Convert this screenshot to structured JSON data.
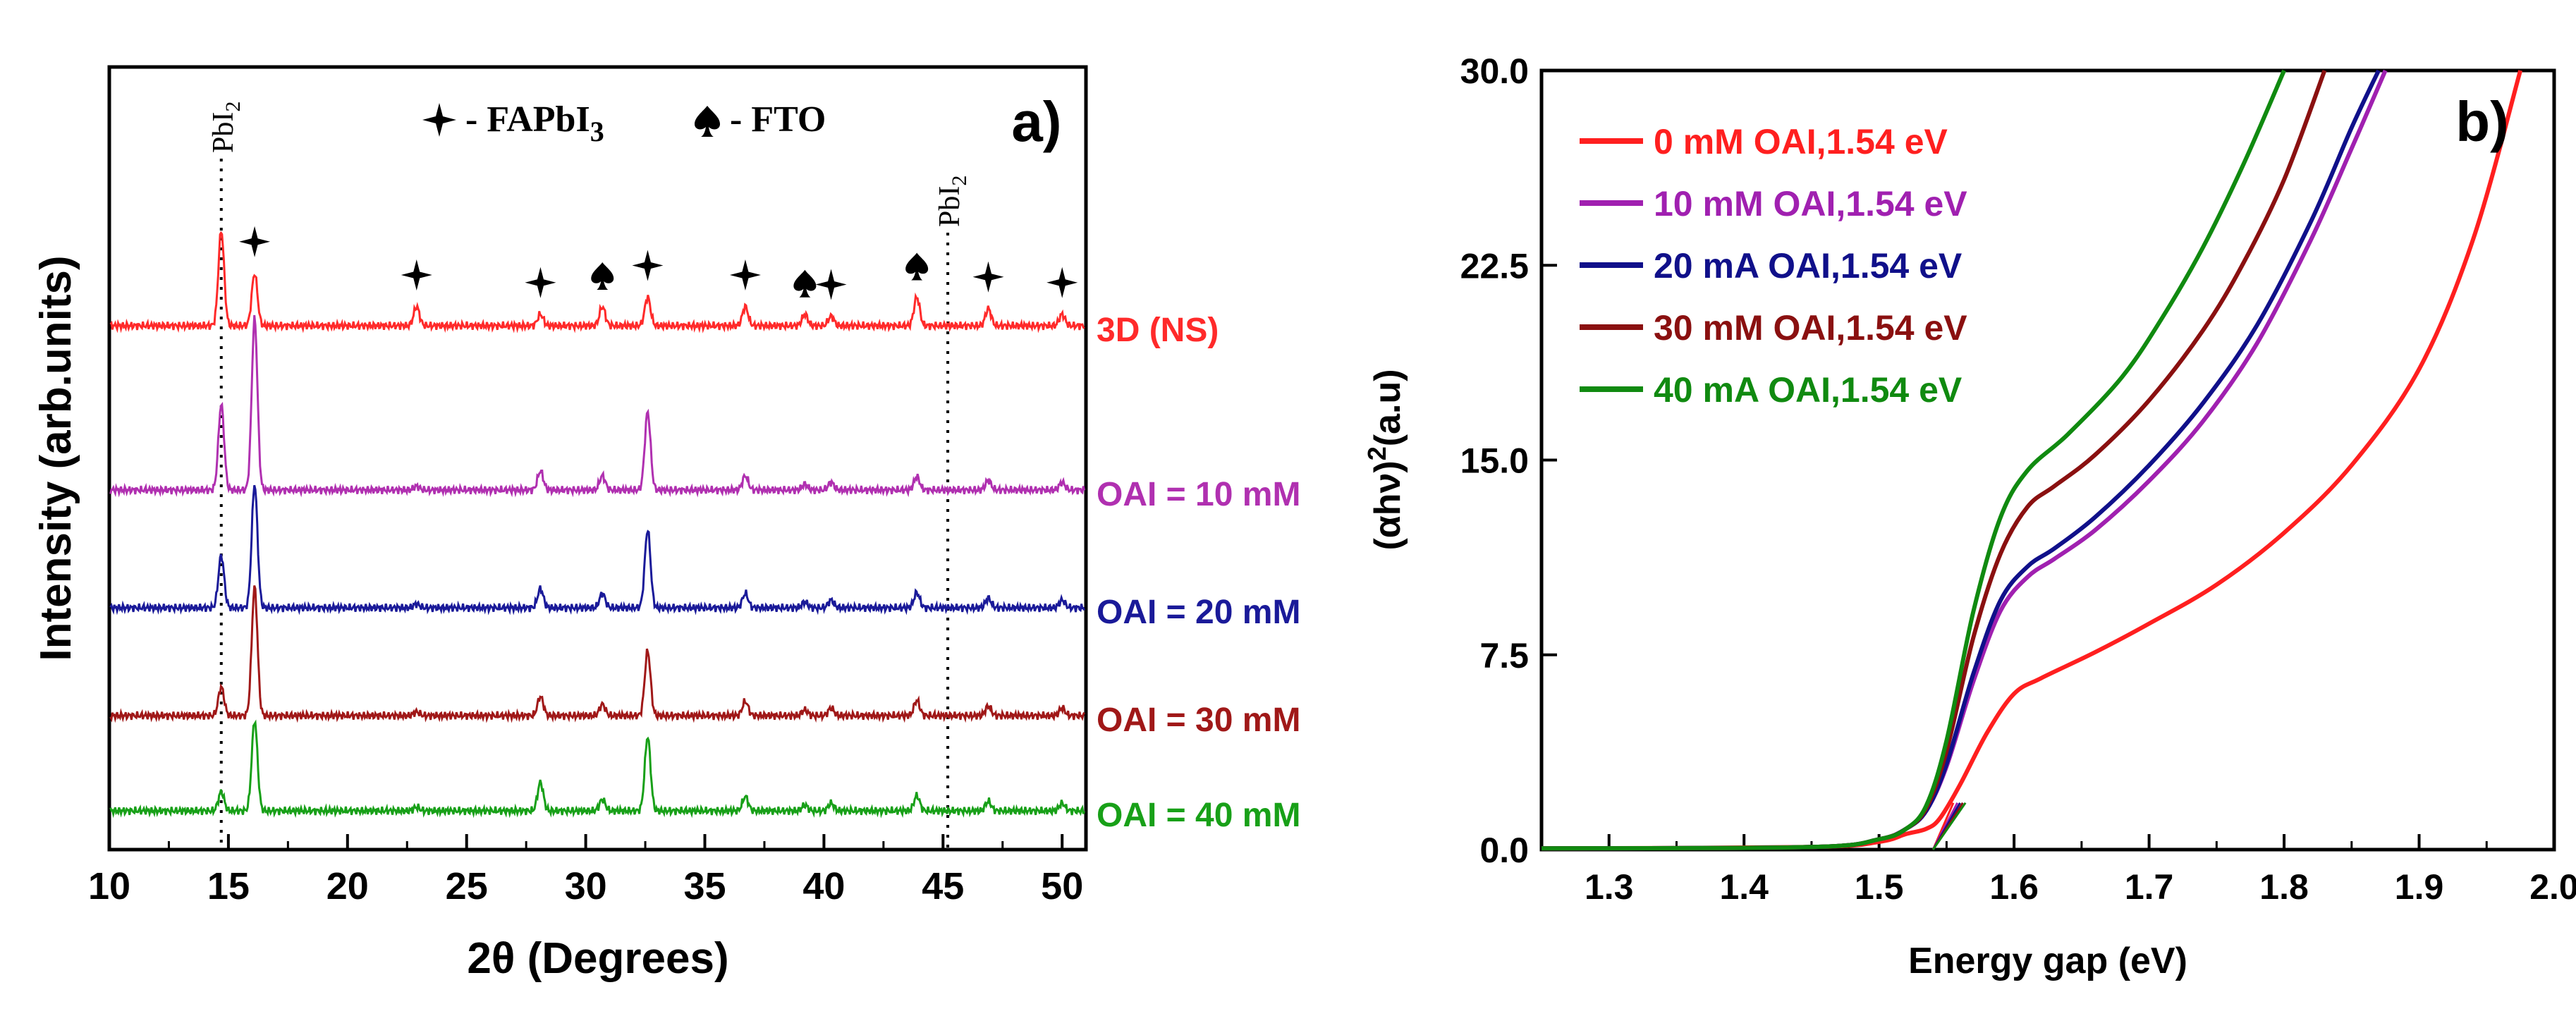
{
  "chart_data": [
    {
      "type": "line",
      "panel_label": "a)",
      "title": "",
      "xlabel": "2θ (Degrees)",
      "ylabel": "Intensity (arb.units)",
      "xlim": [
        10,
        51
      ],
      "xticks": [
        "10",
        "15",
        "20",
        "25",
        "30",
        "35",
        "40",
        "45",
        "50"
      ],
      "legend_text": {
        "fapbi3_prefix": "- FAPbI",
        "fapbi3_sub": "3",
        "fto": "- FTO"
      },
      "reference_lines": [
        {
          "x": 14.7,
          "label": "PbI",
          "sub": "2"
        },
        {
          "x": 45.2,
          "label": "PbI",
          "sub": "2"
        }
      ],
      "fapbi3_markers_x": [
        16.1,
        22.9,
        28.1,
        32.6,
        36.7,
        40.3,
        46.9,
        50.0
      ],
      "fto_markers_x": [
        30.7,
        39.2,
        43.9
      ],
      "series": [
        {
          "name": "3D (NS)",
          "color": "#ff2a2a",
          "peaks": [
            [
              14.7,
              1.0
            ],
            [
              16.1,
              0.55
            ],
            [
              22.9,
              0.2
            ],
            [
              28.1,
              0.12
            ],
            [
              30.7,
              0.2
            ],
            [
              32.6,
              0.3
            ],
            [
              36.7,
              0.2
            ],
            [
              39.2,
              0.12
            ],
            [
              40.3,
              0.1
            ],
            [
              43.9,
              0.3
            ],
            [
              46.9,
              0.18
            ],
            [
              50.0,
              0.12
            ]
          ]
        },
        {
          "name": "OAI = 10 mM",
          "color": "#b030b0",
          "peaks": [
            [
              14.7,
              0.9
            ],
            [
              16.1,
              1.8
            ],
            [
              22.9,
              0.04
            ],
            [
              28.1,
              0.2
            ],
            [
              30.7,
              0.15
            ],
            [
              32.6,
              0.82
            ],
            [
              36.7,
              0.15
            ],
            [
              39.2,
              0.06
            ],
            [
              40.3,
              0.08
            ],
            [
              43.9,
              0.14
            ],
            [
              46.9,
              0.1
            ],
            [
              50.0,
              0.08
            ]
          ]
        },
        {
          "name": "OAI = 20 mM",
          "color": "#1a1a99",
          "peaks": [
            [
              14.7,
              0.55
            ],
            [
              16.1,
              1.3
            ],
            [
              22.9,
              0.04
            ],
            [
              28.1,
              0.2
            ],
            [
              30.7,
              0.15
            ],
            [
              32.6,
              0.82
            ],
            [
              36.7,
              0.15
            ],
            [
              39.2,
              0.06
            ],
            [
              40.3,
              0.08
            ],
            [
              43.9,
              0.16
            ],
            [
              46.9,
              0.1
            ],
            [
              50.0,
              0.08
            ]
          ]
        },
        {
          "name": "OAI = 30 mM",
          "color": "#a01818",
          "peaks": [
            [
              14.7,
              0.3
            ],
            [
              16.1,
              1.35
            ],
            [
              22.9,
              0.04
            ],
            [
              28.1,
              0.2
            ],
            [
              30.7,
              0.12
            ],
            [
              32.6,
              0.68
            ],
            [
              36.7,
              0.15
            ],
            [
              39.2,
              0.06
            ],
            [
              40.3,
              0.08
            ],
            [
              43.9,
              0.16
            ],
            [
              46.9,
              0.1
            ],
            [
              50.0,
              0.08
            ]
          ]
        },
        {
          "name": "OAI = 40 mM",
          "color": "#18a018",
          "peaks": [
            [
              14.7,
              0.2
            ],
            [
              16.1,
              0.95
            ],
            [
              22.9,
              0.04
            ],
            [
              28.1,
              0.3
            ],
            [
              30.7,
              0.12
            ],
            [
              32.6,
              0.78
            ],
            [
              36.7,
              0.15
            ],
            [
              39.2,
              0.06
            ],
            [
              40.3,
              0.08
            ],
            [
              43.9,
              0.16
            ],
            [
              46.9,
              0.1
            ],
            [
              50.0,
              0.08
            ]
          ]
        }
      ]
    },
    {
      "type": "line",
      "panel_label": "b)",
      "title": "",
      "xlabel": "Energy gap (eV)",
      "ylabel_prefix": "(αhν)",
      "ylabel_sup": "2",
      "ylabel_suffix": "(a.u)",
      "xlim": [
        1.25,
        2.0
      ],
      "ylim": [
        0,
        30
      ],
      "xticks": [
        "1.3",
        "1.4",
        "1.5",
        "1.6",
        "1.7",
        "1.8",
        "1.9",
        "2.0"
      ],
      "yticks": [
        "0.0",
        "7.5",
        "15.0",
        "22.5",
        "30.0"
      ],
      "tangent_x": 1.54,
      "series": [
        {
          "name": "0 mM OAI,1.54 eV",
          "color": "#ff1f1f",
          "x": [
            1.25,
            1.45,
            1.5,
            1.52,
            1.535,
            1.545,
            1.56,
            1.58,
            1.6,
            1.62,
            1.66,
            1.7,
            1.75,
            1.8,
            1.85,
            1.9,
            1.94,
            1.975
          ],
          "y": [
            0.05,
            0.1,
            0.3,
            0.6,
            0.8,
            1.2,
            2.5,
            4.5,
            6.0,
            6.6,
            7.6,
            8.7,
            10.2,
            12.2,
            14.8,
            18.5,
            23.5,
            30
          ]
        },
        {
          "name": "10 mM OAI,1.54 eV",
          "color": "#a020b0",
          "x": [
            1.25,
            1.45,
            1.5,
            1.52,
            1.535,
            1.55,
            1.57,
            1.59,
            1.61,
            1.63,
            1.66,
            1.7,
            1.74,
            1.78,
            1.82,
            1.85,
            1.875
          ],
          "y": [
            0.05,
            0.1,
            0.4,
            0.8,
            1.5,
            3.2,
            6.5,
            9.2,
            10.5,
            11.2,
            12.3,
            14.2,
            16.5,
            19.5,
            23.5,
            27.0,
            30
          ]
        },
        {
          "name": "20 mA OAI,1.54 eV",
          "color": "#10108a",
          "x": [
            1.25,
            1.45,
            1.5,
            1.52,
            1.535,
            1.55,
            1.57,
            1.59,
            1.61,
            1.63,
            1.66,
            1.7,
            1.74,
            1.78,
            1.82,
            1.85,
            1.87
          ],
          "y": [
            0.05,
            0.1,
            0.4,
            0.8,
            1.5,
            3.3,
            6.8,
            9.6,
            10.9,
            11.6,
            12.8,
            14.8,
            17.2,
            20.2,
            24.2,
            27.8,
            30
          ]
        },
        {
          "name": "30 mM OAI,1.54 eV",
          "color": "#8a1010",
          "x": [
            1.25,
            1.45,
            1.5,
            1.52,
            1.535,
            1.55,
            1.57,
            1.59,
            1.61,
            1.63,
            1.66,
            1.7,
            1.74,
            1.77,
            1.8,
            1.83
          ],
          "y": [
            0.05,
            0.1,
            0.4,
            0.8,
            1.6,
            3.8,
            8.2,
            11.4,
            13.2,
            14.0,
            15.2,
            17.3,
            20.0,
            22.6,
            25.8,
            30
          ]
        },
        {
          "name": "40 mA OAI,1.54 eV",
          "color": "#108a10",
          "x": [
            1.25,
            1.45,
            1.5,
            1.52,
            1.535,
            1.55,
            1.57,
            1.59,
            1.61,
            1.64,
            1.68,
            1.71,
            1.74,
            1.77,
            1.8
          ],
          "y": [
            0.05,
            0.1,
            0.4,
            0.8,
            1.7,
            4.2,
            9.2,
            12.8,
            14.6,
            16.0,
            18.2,
            20.5,
            23.2,
            26.4,
            30
          ]
        }
      ]
    }
  ]
}
